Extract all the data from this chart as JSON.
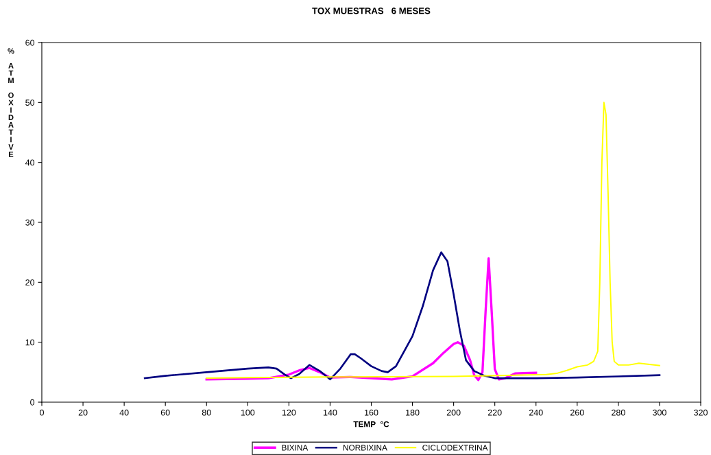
{
  "chart_data": {
    "type": "line",
    "title": "TOX MUESTRAS   6 MESES",
    "xlabel": "TEMP  °C",
    "ylabel": "% ATM OXIDATIVE",
    "xlim": [
      0,
      320
    ],
    "xticks": [
      0,
      20,
      40,
      60,
      80,
      100,
      120,
      140,
      160,
      180,
      200,
      220,
      240,
      260,
      280,
      300,
      320
    ],
    "ylim": [
      0,
      60
    ],
    "yticks": [
      0,
      10,
      20,
      30,
      40,
      50,
      60
    ],
    "grid": false,
    "legend": "bottom",
    "marker": "none",
    "line_style": "solid",
    "series": [
      {
        "name": "BIXINA",
        "color": "#ff00ff",
        "x": [
          80,
          100,
          110,
          120,
          125,
          130,
          135,
          140,
          150,
          160,
          170,
          180,
          190,
          195,
          200,
          202,
          205,
          208,
          210,
          212,
          214,
          215.5,
          217,
          218.5,
          220,
          222,
          225,
          230,
          240
        ],
        "values": [
          3.8,
          3.9,
          4.0,
          4.6,
          5.3,
          5.7,
          5.0,
          4.1,
          4.2,
          4.0,
          3.8,
          4.3,
          6.5,
          8.2,
          9.7,
          10.0,
          9.4,
          7.0,
          4.5,
          3.7,
          5.0,
          15,
          24,
          15,
          5.5,
          3.8,
          4.0,
          4.8,
          4.9
        ]
      },
      {
        "name": "NORBIXINA",
        "color": "#000080",
        "x": [
          50,
          60,
          80,
          100,
          110,
          114,
          118,
          121,
          125,
          130,
          135,
          140,
          145,
          150,
          152,
          155,
          160,
          165,
          168,
          172,
          180,
          185,
          190,
          194,
          197,
          200,
          203,
          206,
          210,
          215,
          220,
          240,
          260,
          280,
          300
        ],
        "values": [
          4.0,
          4.4,
          5.0,
          5.6,
          5.8,
          5.6,
          4.6,
          4.0,
          4.7,
          6.2,
          5.2,
          3.8,
          5.6,
          8.0,
          8.0,
          7.3,
          6.0,
          5.2,
          5.0,
          6.0,
          11,
          16,
          22,
          25,
          23.5,
          18,
          12,
          7,
          5.2,
          4.4,
          4.0,
          4.0,
          4.1,
          4.3,
          4.5
        ]
      },
      {
        "name": "CICLODEXTRINA",
        "color": "#ffff00",
        "x": [
          80,
          100,
          140,
          200,
          230,
          245,
          250,
          255,
          260,
          265,
          268,
          270,
          271,
          272,
          273,
          274,
          275,
          276,
          277,
          278,
          280,
          285,
          290,
          300
        ],
        "values": [
          4.0,
          4.1,
          4.2,
          4.3,
          4.5,
          4.6,
          4.8,
          5.3,
          5.9,
          6.2,
          6.8,
          8.5,
          20,
          40,
          50,
          48,
          35,
          20,
          10,
          6.8,
          6.2,
          6.2,
          6.5,
          6.1
        ]
      }
    ]
  }
}
